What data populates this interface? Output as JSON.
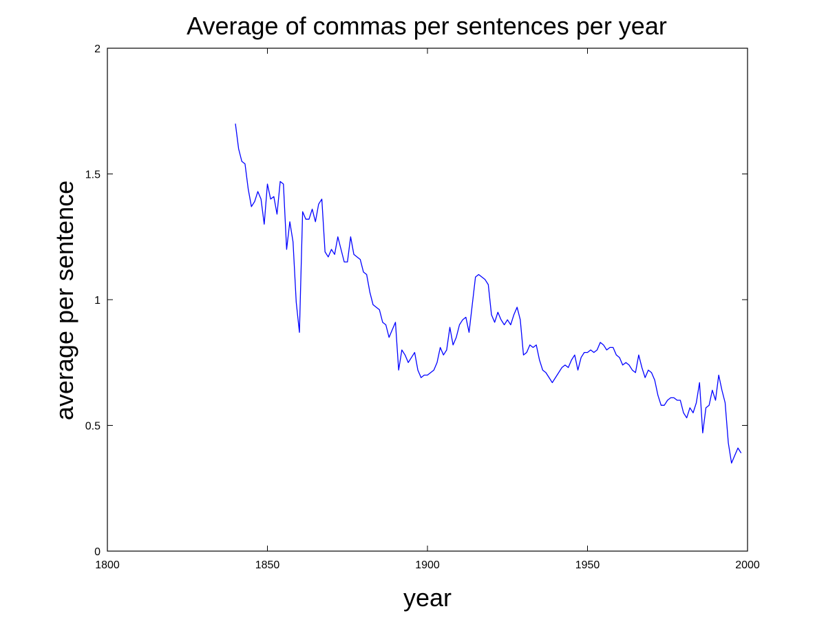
{
  "chart_data": {
    "type": "line",
    "title": "Average of commas per sentences per year",
    "xlabel": "year",
    "ylabel": "average per sentence",
    "xlim": [
      1800,
      2000
    ],
    "ylim": [
      0,
      2
    ],
    "xticks": [
      1800,
      1850,
      1900,
      1950,
      2000
    ],
    "yticks": [
      0,
      0.5,
      1,
      1.5,
      2
    ],
    "xtick_labels": [
      "1800",
      "1850",
      "1900",
      "1950",
      "2000"
    ],
    "ytick_labels": [
      "0",
      "0.5",
      "1",
      "1.5",
      "2"
    ],
    "grid": false,
    "line_color": "#0000ff",
    "series": [
      {
        "x": [
          1840,
          1841,
          1842,
          1843,
          1844,
          1845,
          1846,
          1847,
          1848,
          1849,
          1850,
          1851,
          1852,
          1853,
          1854,
          1855,
          1856,
          1857,
          1858,
          1859,
          1860,
          1861,
          1862,
          1863,
          1864,
          1865,
          1866,
          1867,
          1868,
          1869,
          1870,
          1871,
          1872,
          1873,
          1874,
          1875,
          1876,
          1877,
          1878,
          1879,
          1880,
          1881,
          1882,
          1883,
          1884,
          1885,
          1886,
          1887,
          1888,
          1889,
          1890,
          1891,
          1892,
          1893,
          1894,
          1895,
          1896,
          1897,
          1898,
          1899,
          1900,
          1901,
          1902,
          1903,
          1904,
          1905,
          1906,
          1907,
          1908,
          1909,
          1910,
          1911,
          1912,
          1913,
          1914,
          1915,
          1916,
          1917,
          1918,
          1919,
          1920,
          1921,
          1922,
          1923,
          1924,
          1925,
          1926,
          1927,
          1928,
          1929,
          1930,
          1931,
          1932,
          1933,
          1934,
          1935,
          1936,
          1937,
          1938,
          1939,
          1940,
          1941,
          1942,
          1943,
          1944,
          1945,
          1946,
          1947,
          1948,
          1949,
          1950,
          1951,
          1952,
          1953,
          1954,
          1955,
          1956,
          1957,
          1958,
          1959,
          1960,
          1961,
          1962,
          1963,
          1964,
          1965,
          1966,
          1967,
          1968,
          1969,
          1970,
          1971,
          1972,
          1973,
          1974,
          1975,
          1976,
          1977,
          1978,
          1979,
          1980,
          1981,
          1982,
          1983,
          1984,
          1985,
          1986,
          1987,
          1988,
          1989,
          1990,
          1991,
          1992,
          1993,
          1994,
          1995,
          1996,
          1997,
          1998
        ],
        "y": [
          1.7,
          1.6,
          1.55,
          1.54,
          1.44,
          1.37,
          1.39,
          1.43,
          1.4,
          1.3,
          1.46,
          1.4,
          1.41,
          1.34,
          1.47,
          1.46,
          1.2,
          1.31,
          1.23,
          0.99,
          0.87,
          1.35,
          1.32,
          1.32,
          1.36,
          1.31,
          1.38,
          1.4,
          1.19,
          1.17,
          1.2,
          1.18,
          1.25,
          1.2,
          1.15,
          1.15,
          1.25,
          1.18,
          1.17,
          1.16,
          1.11,
          1.1,
          1.03,
          0.98,
          0.97,
          0.96,
          0.91,
          0.9,
          0.85,
          0.88,
          0.91,
          0.72,
          0.8,
          0.78,
          0.75,
          0.77,
          0.79,
          0.72,
          0.69,
          0.7,
          0.7,
          0.71,
          0.72,
          0.75,
          0.81,
          0.78,
          0.8,
          0.89,
          0.82,
          0.85,
          0.9,
          0.92,
          0.93,
          0.87,
          0.98,
          1.09,
          1.1,
          1.09,
          1.08,
          1.06,
          0.94,
          0.91,
          0.95,
          0.92,
          0.9,
          0.92,
          0.9,
          0.94,
          0.97,
          0.92,
          0.78,
          0.79,
          0.82,
          0.81,
          0.82,
          0.76,
          0.72,
          0.71,
          0.69,
          0.67,
          0.69,
          0.71,
          0.73,
          0.74,
          0.73,
          0.76,
          0.78,
          0.72,
          0.77,
          0.79,
          0.79,
          0.8,
          0.79,
          0.8,
          0.83,
          0.82,
          0.8,
          0.81,
          0.81,
          0.78,
          0.77,
          0.74,
          0.75,
          0.74,
          0.72,
          0.71,
          0.78,
          0.73,
          0.69,
          0.72,
          0.71,
          0.68,
          0.62,
          0.58,
          0.58,
          0.6,
          0.61,
          0.61,
          0.6,
          0.6,
          0.55,
          0.53,
          0.57,
          0.55,
          0.59,
          0.67,
          0.47,
          0.57,
          0.58,
          0.64,
          0.6,
          0.7,
          0.64,
          0.59,
          0.43,
          0.35,
          0.38,
          0.41,
          0.39
        ]
      }
    ]
  }
}
